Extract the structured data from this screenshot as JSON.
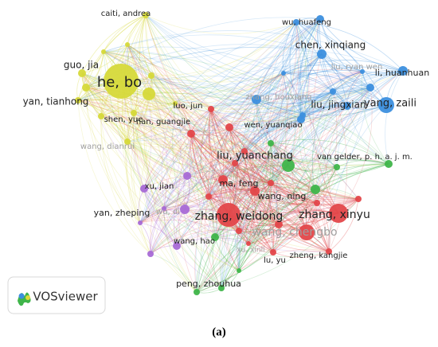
{
  "nodes": [
    {
      "label": "caiti, andrea"
    },
    {
      "label": "guo, jia"
    },
    {
      "label": "he, bo"
    },
    {
      "label": "yan, tianhong"
    },
    {
      "label": "shen, yue"
    },
    {
      "label": "wang, dianrui"
    },
    {
      "label": "wu, huafeng"
    },
    {
      "label": "chen, xinqiang"
    },
    {
      "label": "liu, ryan wen"
    },
    {
      "label": "li, huanhuan"
    },
    {
      "label": "zhang, houxiang"
    },
    {
      "label": "liu, jingxian"
    },
    {
      "label": "yang, zaili"
    },
    {
      "label": "wen, yuanqiao"
    },
    {
      "label": "luo, jun"
    },
    {
      "label": "han, guangjie"
    },
    {
      "label": "liu, yuanchang"
    },
    {
      "label": "van gelder, p. h. a. j. m."
    },
    {
      "label": "ma, feng"
    },
    {
      "label": "xu, jian"
    },
    {
      "label": "wang, ning"
    },
    {
      "label": "yan, zheping"
    },
    {
      "label": "wu, di"
    },
    {
      "label": "zhang, weidong"
    },
    {
      "label": "zhang, xinyu"
    },
    {
      "label": "wang, chengbo"
    },
    {
      "label": "wang, hao"
    },
    {
      "label": "xu, xinli"
    },
    {
      "label": "lu, yu"
    },
    {
      "label": "zheng, kangjie"
    },
    {
      "label": "peng, zhouhua"
    }
  ],
  "logo": {
    "text": "VOSviewer"
  },
  "caption": "(a)"
}
